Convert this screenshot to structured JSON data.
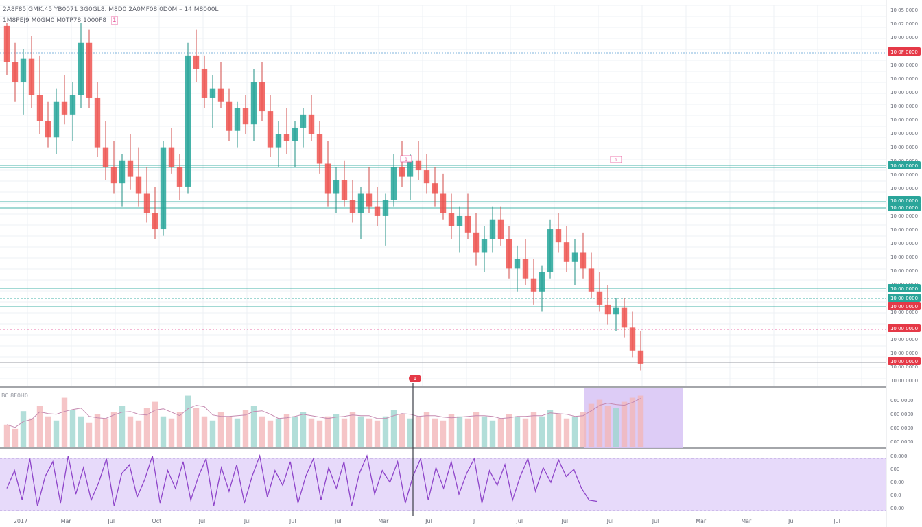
{
  "legend": {
    "main": "2A8F85 GMK.45 YB0071 3G0GL8. M8D0 2A0MF08 0D0M – 14 M8000L",
    "sub": "1M8PEJ9 M0GM0 M0TP78 1000F8",
    "sub_badge": "1"
  },
  "volume_legend": "B0.8F0H0",
  "colors": {
    "bull": "#26a69a",
    "bear": "#ef5350",
    "bull_wick": "#1e8f83",
    "bear_wick": "#d24a47",
    "pink": "#e8559a",
    "purple": "#8e44c9",
    "purple_fill": "#d9c6f5",
    "grid": "#eef0f4",
    "tag_red": "#e53947",
    "tag_teal": "#2aa59a"
  },
  "price_axis": {
    "labels": [
      "10 05 0000",
      "10 02 0000",
      "10 00 0000",
      "10 00 0000",
      "10 00 0000",
      "10 00 0000",
      "10 00 0000",
      "10 00 0000",
      "10 00 0000",
      "10 00 0000",
      "10 00 0000",
      "10 00 0000",
      "10 00 0000",
      "10 00 0000",
      "10 00 0000",
      "10 00 0000",
      "10 00 0000",
      "10 00 0000",
      "10 00 0000",
      "10 00 0000",
      "10 00 0000",
      "10 00 0000",
      "10 00 0000",
      "10 00 0000",
      "10 00 0000",
      "10 00 0000",
      "10 00 0000",
      "10 00 0000"
    ],
    "tags": [
      {
        "text": "10 0F 0000",
        "color": "red"
      },
      {
        "text": "10 00 0000",
        "color": "teal"
      },
      {
        "text": "10 00 0000",
        "color": "teal"
      },
      {
        "text": "10 00 0000",
        "color": "teal"
      },
      {
        "text": "10 00 0000",
        "color": "teal"
      },
      {
        "text": "10 00 0000",
        "color": "teal"
      },
      {
        "text": "10 00 0000",
        "color": "red"
      },
      {
        "text": "10 00 0000",
        "color": "red"
      },
      {
        "text": "10 00 0000",
        "color": "red"
      }
    ]
  },
  "volume_axis": {
    "labels": [
      "000 0000",
      "000 0000",
      "000 0000",
      "000 0000"
    ]
  },
  "oscillator_axis": {
    "labels": [
      "00.000",
      "000",
      "00.00",
      "00.0",
      "00.00"
    ]
  },
  "time_axis": {
    "labels": [
      "2017",
      "Mar",
      "Jul",
      "Oct",
      "Jul",
      "Jul",
      "Jul",
      "Jul",
      "Mar",
      "Jul",
      "J",
      "Jul",
      "Jul",
      "Jul",
      "Jul",
      "Mar",
      "Mar",
      "Jul",
      "Jul"
    ]
  },
  "markers": {
    "top_label_1": "1",
    "top_label_2": "1",
    "volume_marker": "1"
  },
  "chart_data": {
    "type": "candlestick",
    "series": [
      {
        "name": "price",
        "values": [
          [
            95,
            96,
            80,
            84
          ],
          [
            84,
            90,
            72,
            78
          ],
          [
            78,
            88,
            68,
            85
          ],
          [
            85,
            92,
            70,
            74
          ],
          [
            74,
            86,
            62,
            66
          ],
          [
            66,
            72,
            58,
            61
          ],
          [
            61,
            76,
            56,
            72
          ],
          [
            72,
            80,
            65,
            68
          ],
          [
            68,
            78,
            60,
            74
          ],
          [
            74,
            96,
            70,
            90
          ],
          [
            90,
            94,
            70,
            73
          ],
          [
            73,
            78,
            55,
            58
          ],
          [
            58,
            66,
            48,
            52
          ],
          [
            52,
            60,
            44,
            47
          ],
          [
            47,
            56,
            40,
            54
          ],
          [
            54,
            62,
            45,
            49
          ],
          [
            49,
            58,
            40,
            44
          ],
          [
            44,
            52,
            35,
            38
          ],
          [
            38,
            46,
            30,
            33
          ],
          [
            33,
            60,
            31,
            58
          ],
          [
            58,
            64,
            50,
            52
          ],
          [
            52,
            56,
            42,
            46
          ],
          [
            46,
            90,
            44,
            86
          ],
          [
            86,
            94,
            78,
            82
          ],
          [
            82,
            86,
            70,
            73
          ],
          [
            73,
            80,
            64,
            76
          ],
          [
            76,
            84,
            70,
            72
          ],
          [
            72,
            76,
            60,
            63
          ],
          [
            63,
            72,
            58,
            70
          ],
          [
            70,
            74,
            62,
            65
          ],
          [
            65,
            82,
            60,
            78
          ],
          [
            78,
            84,
            66,
            69
          ],
          [
            69,
            74,
            55,
            58
          ],
          [
            58,
            66,
            52,
            62
          ],
          [
            62,
            70,
            56,
            60
          ],
          [
            60,
            66,
            52,
            64
          ],
          [
            64,
            70,
            58,
            68
          ],
          [
            68,
            74,
            60,
            62
          ],
          [
            62,
            66,
            50,
            53
          ],
          [
            53,
            60,
            40,
            44
          ],
          [
            44,
            52,
            38,
            48
          ],
          [
            48,
            54,
            40,
            42
          ],
          [
            42,
            48,
            35,
            38
          ],
          [
            38,
            46,
            30,
            44
          ],
          [
            44,
            52,
            38,
            40
          ],
          [
            40,
            46,
            34,
            37
          ],
          [
            37,
            44,
            28,
            42
          ],
          [
            42,
            56,
            40,
            52
          ],
          [
            52,
            60,
            46,
            49
          ],
          [
            49,
            56,
            42,
            54
          ],
          [
            54,
            60,
            48,
            51
          ],
          [
            51,
            56,
            44,
            47
          ],
          [
            47,
            52,
            40,
            44
          ],
          [
            44,
            50,
            36,
            38
          ],
          [
            38,
            44,
            30,
            34
          ],
          [
            34,
            40,
            26,
            37
          ],
          [
            37,
            44,
            30,
            32
          ],
          [
            32,
            38,
            22,
            26
          ],
          [
            26,
            34,
            20,
            30
          ],
          [
            30,
            40,
            26,
            36
          ],
          [
            36,
            40,
            28,
            30
          ],
          [
            30,
            34,
            18,
            21
          ],
          [
            21,
            28,
            14,
            24
          ],
          [
            24,
            30,
            16,
            18
          ],
          [
            18,
            24,
            10,
            14
          ],
          [
            14,
            22,
            8,
            20
          ],
          [
            20,
            36,
            18,
            33
          ],
          [
            33,
            38,
            26,
            29
          ],
          [
            29,
            34,
            20,
            23
          ],
          [
            23,
            30,
            16,
            26
          ],
          [
            26,
            32,
            18,
            21
          ],
          [
            21,
            26,
            12,
            14
          ],
          [
            14,
            20,
            8,
            10
          ],
          [
            10,
            16,
            4,
            7
          ],
          [
            7,
            12,
            2,
            9
          ],
          [
            9,
            12,
            0,
            3
          ],
          [
            3,
            8,
            -6,
            -4
          ],
          [
            -4,
            2,
            -10,
            -8
          ]
        ]
      }
    ],
    "volume": [
      22,
      18,
      35,
      28,
      40,
      30,
      26,
      48,
      36,
      30,
      24,
      32,
      28,
      34,
      40,
      30,
      26,
      38,
      44,
      30,
      28,
      34,
      50,
      38,
      30,
      26,
      34,
      30,
      28,
      36,
      40,
      30,
      26,
      28,
      32,
      30,
      34,
      28,
      26,
      30,
      32,
      28,
      34,
      30,
      28,
      26,
      30,
      36,
      32,
      28,
      30,
      34,
      28,
      26,
      32,
      30,
      28,
      34,
      30,
      26,
      28,
      32,
      30,
      28,
      34,
      30,
      36,
      32,
      28,
      30,
      34,
      42,
      46,
      40,
      38,
      44,
      48,
      50
    ],
    "oscillator": [
      40,
      70,
      20,
      90,
      10,
      60,
      85,
      15,
      95,
      30,
      75,
      20,
      50,
      90,
      10,
      65,
      80,
      25,
      55,
      95,
      15,
      70,
      40,
      85,
      20,
      60,
      90,
      10,
      75,
      35,
      80,
      15,
      60,
      95,
      25,
      70,
      45,
      85,
      15,
      60,
      90,
      20,
      75,
      40,
      85,
      10,
      65,
      95,
      30,
      70,
      50,
      85,
      15,
      60,
      90,
      20,
      75,
      40,
      85,
      30,
      65,
      90,
      15,
      70,
      45,
      80,
      20,
      60,
      90,
      35,
      75,
      50,
      88,
      60,
      72,
      40,
      20,
      18
    ]
  }
}
